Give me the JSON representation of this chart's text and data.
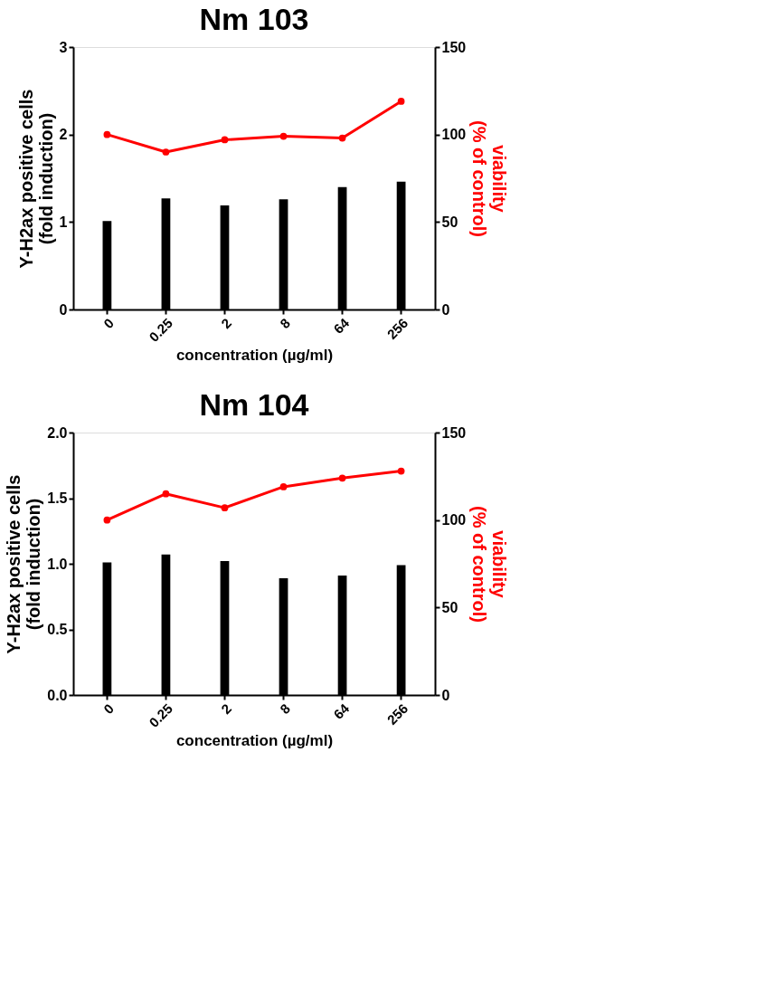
{
  "chart_data": [
    {
      "type": "bar",
      "title": "Nm 103",
      "xlabel": "concentration (µg/ml)",
      "ylabel": "Y-H2ax positive cells\n(fold induction)",
      "y2label": "viability\n(% of control)",
      "categories": [
        "0",
        "0.25",
        "2",
        "8",
        "64",
        "256"
      ],
      "ylim": [
        0,
        3
      ],
      "yticks": [
        0,
        1,
        2,
        3
      ],
      "y2lim": [
        0,
        150
      ],
      "y2ticks": [
        0,
        50,
        100,
        150
      ],
      "grid": false,
      "marker": "circle",
      "series": [
        {
          "color": "#000000",
          "values": [
            1.01,
            1.27,
            1.19,
            1.26,
            1.4,
            1.46
          ]
        },
        {
          "type": "line",
          "axis": "y2",
          "color": "#ff0000",
          "values": [
            100,
            90,
            97,
            99,
            98,
            119
          ]
        }
      ]
    },
    {
      "type": "bar",
      "title": "Nm 104",
      "xlabel": "concentration (µg/ml)",
      "ylabel": "Y-H2ax positive cells\n(fold induction)",
      "y2label": "viability\n(% of control)",
      "categories": [
        "0",
        "0.25",
        "2",
        "8",
        "64",
        "256"
      ],
      "ylim": [
        0,
        2
      ],
      "yticks": [
        {
          "value": 0,
          "label": "0.0"
        },
        {
          "value": 0.5,
          "label": "0.5"
        },
        {
          "value": 1,
          "label": "1.0"
        },
        {
          "value": 1.5,
          "label": "1.5"
        },
        {
          "value": 2,
          "label": "2.0"
        }
      ],
      "y2lim": [
        0,
        150
      ],
      "y2ticks": [
        0,
        50,
        100,
        150
      ],
      "grid": false,
      "marker": "circle",
      "series": [
        {
          "color": "#000000",
          "values": [
            1.01,
            1.07,
            1.02,
            0.89,
            0.91,
            0.99
          ]
        },
        {
          "type": "line",
          "axis": "y2",
          "color": "#ff0000",
          "values": [
            100,
            115,
            107,
            119,
            124,
            128
          ]
        }
      ]
    }
  ]
}
